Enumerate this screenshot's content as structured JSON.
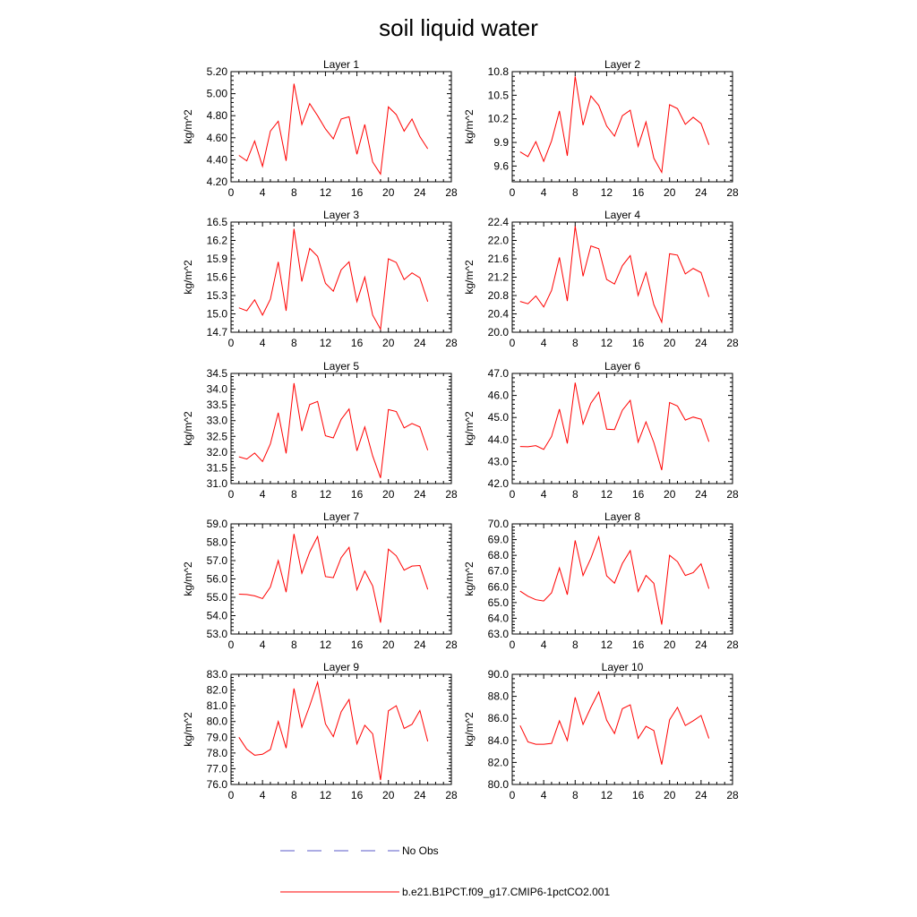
{
  "title": "soil liquid water",
  "legend": {
    "obs_label": "No Obs",
    "obs_color": "#5a5ac8",
    "model_label": "b.e21.B1PCT.f09_g17.CMIP6-1pctCO2.001",
    "model_color": "#ff0000"
  },
  "chart_data": [
    {
      "type": "line",
      "title": "Layer 1",
      "ylabel": "kg/m^2",
      "xlim": [
        0,
        28
      ],
      "ylim": [
        4.2,
        5.2
      ],
      "xticks": [
        0,
        4,
        8,
        12,
        16,
        20,
        24,
        28
      ],
      "xtick_labels": [
        "0",
        "4",
        "8",
        "12",
        "16",
        "20",
        "24",
        "28"
      ],
      "yticks": [
        4.2,
        4.4,
        4.6,
        4.8,
        5.0,
        5.2
      ],
      "ytick_labels": [
        "4.20",
        "4.40",
        "4.60",
        "4.80",
        "5.00",
        "5.20"
      ],
      "x": [
        1,
        2,
        3,
        4,
        5,
        6,
        7,
        8,
        9,
        10,
        11,
        12,
        13,
        14,
        15,
        16,
        17,
        18,
        19,
        20,
        21,
        22,
        23,
        24,
        25
      ],
      "series": [
        {
          "name": "b.e21.B1PCT.f09_g17.CMIP6-1pctCO2.001",
          "values": [
            4.44,
            4.39,
            4.57,
            4.34,
            4.66,
            4.75,
            4.39,
            5.09,
            4.72,
            4.91,
            4.8,
            4.68,
            4.59,
            4.77,
            4.79,
            4.45,
            4.72,
            4.38,
            4.27,
            4.88,
            4.81,
            4.66,
            4.77,
            4.61,
            4.5
          ]
        }
      ]
    },
    {
      "type": "line",
      "title": "Layer 2",
      "ylabel": "kg/m^2",
      "xlim": [
        0,
        28
      ],
      "ylim": [
        9.4,
        10.8
      ],
      "xticks": [
        0,
        4,
        8,
        12,
        16,
        20,
        24,
        28
      ],
      "xtick_labels": [
        "0",
        "4",
        "8",
        "12",
        "16",
        "20",
        "24",
        "28"
      ],
      "yticks": [
        9.6,
        9.9,
        10.2,
        10.5,
        10.8
      ],
      "ytick_labels": [
        "9.6",
        "9.9",
        "10.2",
        "10.5",
        "10.8"
      ],
      "x": [
        1,
        2,
        3,
        4,
        5,
        6,
        7,
        8,
        9,
        10,
        11,
        12,
        13,
        14,
        15,
        16,
        17,
        18,
        19,
        20,
        21,
        22,
        23,
        24,
        25
      ],
      "series": [
        {
          "name": "b.e21.B1PCT.f09_g17.CMIP6-1pctCO2.001",
          "values": [
            9.78,
            9.72,
            9.91,
            9.66,
            9.92,
            10.3,
            9.73,
            10.74,
            10.12,
            10.49,
            10.37,
            10.11,
            9.98,
            10.24,
            10.31,
            9.85,
            10.16,
            9.7,
            9.52,
            10.38,
            10.33,
            10.13,
            10.22,
            10.14,
            9.87
          ]
        }
      ]
    },
    {
      "type": "line",
      "title": "Layer 3",
      "ylabel": "kg/m^2",
      "xlim": [
        0,
        28
      ],
      "ylim": [
        14.7,
        16.5
      ],
      "xticks": [
        0,
        4,
        8,
        12,
        16,
        20,
        24,
        28
      ],
      "xtick_labels": [
        "0",
        "4",
        "8",
        "12",
        "16",
        "20",
        "24",
        "28"
      ],
      "yticks": [
        14.7,
        15.0,
        15.3,
        15.6,
        15.9,
        16.2,
        16.5
      ],
      "ytick_labels": [
        "14.7",
        "15.0",
        "15.3",
        "15.6",
        "15.9",
        "16.2",
        "16.5"
      ],
      "x": [
        1,
        2,
        3,
        4,
        5,
        6,
        7,
        8,
        9,
        10,
        11,
        12,
        13,
        14,
        15,
        16,
        17,
        18,
        19,
        20,
        21,
        22,
        23,
        24,
        25
      ],
      "series": [
        {
          "name": "b.e21.B1PCT.f09_g17.CMIP6-1pctCO2.001",
          "values": [
            15.1,
            15.05,
            15.23,
            14.98,
            15.24,
            15.85,
            15.05,
            16.39,
            15.53,
            16.07,
            15.94,
            15.5,
            15.37,
            15.72,
            15.85,
            15.2,
            15.6,
            14.98,
            14.75,
            15.9,
            15.84,
            15.56,
            15.67,
            15.59,
            15.2
          ]
        }
      ]
    },
    {
      "type": "line",
      "title": "Layer 4",
      "ylabel": "kg/m^2",
      "xlim": [
        0,
        28
      ],
      "ylim": [
        20.0,
        22.4
      ],
      "xticks": [
        0,
        4,
        8,
        12,
        16,
        20,
        24,
        28
      ],
      "xtick_labels": [
        "0",
        "4",
        "8",
        "12",
        "16",
        "20",
        "24",
        "28"
      ],
      "yticks": [
        20.0,
        20.4,
        20.8,
        21.2,
        21.6,
        22.0,
        22.4
      ],
      "ytick_labels": [
        "20.0",
        "20.4",
        "20.8",
        "21.2",
        "21.6",
        "22.0",
        "22.4"
      ],
      "x": [
        1,
        2,
        3,
        4,
        5,
        6,
        7,
        8,
        9,
        10,
        11,
        12,
        13,
        14,
        15,
        16,
        17,
        18,
        19,
        20,
        21,
        22,
        23,
        24,
        25
      ],
      "series": [
        {
          "name": "b.e21.B1PCT.f09_g17.CMIP6-1pctCO2.001",
          "values": [
            20.67,
            20.62,
            20.79,
            20.55,
            20.91,
            21.63,
            20.68,
            22.31,
            21.22,
            21.88,
            21.82,
            21.15,
            21.05,
            21.45,
            21.67,
            20.8,
            21.3,
            20.6,
            20.22,
            21.71,
            21.68,
            21.27,
            21.39,
            21.3,
            20.77
          ]
        }
      ]
    },
    {
      "type": "line",
      "title": "Layer 5",
      "ylabel": "kg/m^2",
      "xlim": [
        0,
        28
      ],
      "ylim": [
        31.0,
        34.5
      ],
      "xticks": [
        0,
        4,
        8,
        12,
        16,
        20,
        24,
        28
      ],
      "xtick_labels": [
        "0",
        "4",
        "8",
        "12",
        "16",
        "20",
        "24",
        "28"
      ],
      "yticks": [
        31.0,
        31.5,
        32.0,
        32.5,
        33.0,
        33.5,
        34.0,
        34.5
      ],
      "ytick_labels": [
        "31.0",
        "31.5",
        "32.0",
        "32.5",
        "33.0",
        "33.5",
        "34.0",
        "34.5"
      ],
      "x": [
        1,
        2,
        3,
        4,
        5,
        6,
        7,
        8,
        9,
        10,
        11,
        12,
        13,
        14,
        15,
        16,
        17,
        18,
        19,
        20,
        21,
        22,
        23,
        24,
        25
      ],
      "series": [
        {
          "name": "b.e21.B1PCT.f09_g17.CMIP6-1pctCO2.001",
          "values": [
            31.85,
            31.78,
            31.97,
            31.7,
            32.26,
            33.25,
            31.96,
            34.19,
            32.67,
            33.51,
            33.61,
            32.52,
            32.45,
            33.04,
            33.37,
            32.04,
            32.8,
            31.88,
            31.18,
            33.35,
            33.29,
            32.77,
            32.91,
            32.8,
            32.06
          ]
        }
      ]
    },
    {
      "type": "line",
      "title": "Layer 6",
      "ylabel": "kg/m^2",
      "xlim": [
        0,
        28
      ],
      "ylim": [
        42.0,
        47.0
      ],
      "xticks": [
        0,
        4,
        8,
        12,
        16,
        20,
        24,
        28
      ],
      "xtick_labels": [
        "0",
        "4",
        "8",
        "12",
        "16",
        "20",
        "24",
        "28"
      ],
      "yticks": [
        42.0,
        43.0,
        44.0,
        45.0,
        46.0,
        47.0
      ],
      "ytick_labels": [
        "42.0",
        "43.0",
        "44.0",
        "45.0",
        "46.0",
        "47.0"
      ],
      "x": [
        1,
        2,
        3,
        4,
        5,
        6,
        7,
        8,
        9,
        10,
        11,
        12,
        13,
        14,
        15,
        16,
        17,
        18,
        19,
        20,
        21,
        22,
        23,
        24,
        25
      ],
      "series": [
        {
          "name": "b.e21.B1PCT.f09_g17.CMIP6-1pctCO2.001",
          "values": [
            43.68,
            43.67,
            43.72,
            43.55,
            44.14,
            45.38,
            43.82,
            46.58,
            44.7,
            45.65,
            46.15,
            44.47,
            44.45,
            45.33,
            45.78,
            43.88,
            44.8,
            43.86,
            42.61,
            45.68,
            45.52,
            44.88,
            45.02,
            44.92,
            43.9
          ]
        }
      ]
    },
    {
      "type": "line",
      "title": "Layer 7",
      "ylabel": "kg/m^2",
      "xlim": [
        0,
        28
      ],
      "ylim": [
        53.0,
        59.0
      ],
      "xticks": [
        0,
        4,
        8,
        12,
        16,
        20,
        24,
        28
      ],
      "xtick_labels": [
        "0",
        "4",
        "8",
        "12",
        "16",
        "20",
        "24",
        "28"
      ],
      "yticks": [
        53.0,
        54.0,
        55.0,
        56.0,
        57.0,
        58.0,
        59.0
      ],
      "ytick_labels": [
        "53.0",
        "54.0",
        "55.0",
        "56.0",
        "57.0",
        "58.0",
        "59.0"
      ],
      "x": [
        1,
        2,
        3,
        4,
        5,
        6,
        7,
        8,
        9,
        10,
        11,
        12,
        13,
        14,
        15,
        16,
        17,
        18,
        19,
        20,
        21,
        22,
        23,
        24,
        25
      ],
      "series": [
        {
          "name": "b.e21.B1PCT.f09_g17.CMIP6-1pctCO2.001",
          "values": [
            55.17,
            55.15,
            55.08,
            54.93,
            55.56,
            57.0,
            55.28,
            58.45,
            56.31,
            57.47,
            58.31,
            56.13,
            56.07,
            57.16,
            57.72,
            55.4,
            56.43,
            55.62,
            53.62,
            57.62,
            57.26,
            56.48,
            56.7,
            56.73,
            55.43
          ]
        }
      ]
    },
    {
      "type": "line",
      "title": "Layer 8",
      "ylabel": "kg/m^2",
      "xlim": [
        0,
        28
      ],
      "ylim": [
        63.0,
        70.0
      ],
      "xticks": [
        0,
        4,
        8,
        12,
        16,
        20,
        24,
        28
      ],
      "xtick_labels": [
        "0",
        "4",
        "8",
        "12",
        "16",
        "20",
        "24",
        "28"
      ],
      "yticks": [
        63.0,
        64.0,
        65.0,
        66.0,
        67.0,
        68.0,
        69.0,
        70.0
      ],
      "ytick_labels": [
        "63.0",
        "64.0",
        "65.0",
        "66.0",
        "67.0",
        "68.0",
        "69.0",
        "70.0"
      ],
      "x": [
        1,
        2,
        3,
        4,
        5,
        6,
        7,
        8,
        9,
        10,
        11,
        12,
        13,
        14,
        15,
        16,
        17,
        18,
        19,
        20,
        21,
        22,
        23,
        24,
        25
      ],
      "series": [
        {
          "name": "b.e21.B1PCT.f09_g17.CMIP6-1pctCO2.001",
          "values": [
            65.73,
            65.4,
            65.18,
            65.1,
            65.62,
            67.2,
            65.5,
            68.95,
            66.72,
            67.82,
            69.18,
            66.7,
            66.23,
            67.48,
            68.3,
            65.7,
            66.72,
            66.22,
            63.6,
            68.0,
            67.6,
            66.72,
            66.9,
            67.46,
            65.88
          ]
        }
      ]
    },
    {
      "type": "line",
      "title": "Layer 9",
      "ylabel": "kg/m^2",
      "xlim": [
        0,
        28
      ],
      "ylim": [
        76.0,
        83.0
      ],
      "xticks": [
        0,
        4,
        8,
        12,
        16,
        20,
        24,
        28
      ],
      "xtick_labels": [
        "0",
        "4",
        "8",
        "12",
        "16",
        "20",
        "24",
        "28"
      ],
      "yticks": [
        76.0,
        77.0,
        78.0,
        79.0,
        80.0,
        81.0,
        82.0,
        83.0
      ],
      "ytick_labels": [
        "76.0",
        "77.0",
        "78.0",
        "79.0",
        "80.0",
        "81.0",
        "82.0",
        "83.0"
      ],
      "x": [
        1,
        2,
        3,
        4,
        5,
        6,
        7,
        8,
        9,
        10,
        11,
        12,
        13,
        14,
        15,
        16,
        17,
        18,
        19,
        20,
        21,
        22,
        23,
        24,
        25
      ],
      "series": [
        {
          "name": "b.e21.B1PCT.f09_g17.CMIP6-1pctCO2.001",
          "values": [
            79.0,
            78.24,
            77.86,
            77.92,
            78.22,
            80.0,
            78.31,
            82.1,
            79.64,
            81.0,
            82.5,
            79.85,
            79.04,
            80.62,
            81.4,
            78.58,
            79.76,
            79.22,
            76.28,
            80.68,
            81.0,
            79.56,
            79.82,
            80.7,
            78.74
          ]
        }
      ]
    },
    {
      "type": "line",
      "title": "Layer 10",
      "ylabel": "kg/m^2",
      "xlim": [
        0,
        28
      ],
      "ylim": [
        80.0,
        90.0
      ],
      "xticks": [
        0,
        4,
        8,
        12,
        16,
        20,
        24,
        28
      ],
      "xtick_labels": [
        "0",
        "4",
        "8",
        "12",
        "16",
        "20",
        "24",
        "28"
      ],
      "yticks": [
        80.0,
        82.0,
        84.0,
        86.0,
        88.0,
        90.0
      ],
      "ytick_labels": [
        "80.0",
        "82.0",
        "84.0",
        "86.0",
        "88.0",
        "90.0"
      ],
      "x": [
        1,
        2,
        3,
        4,
        5,
        6,
        7,
        8,
        9,
        10,
        11,
        12,
        13,
        14,
        15,
        16,
        17,
        18,
        19,
        20,
        21,
        22,
        23,
        24,
        25
      ],
      "series": [
        {
          "name": "b.e21.B1PCT.f09_g17.CMIP6-1pctCO2.001",
          "values": [
            85.35,
            83.86,
            83.65,
            83.65,
            83.73,
            85.78,
            83.99,
            87.91,
            85.45,
            87.0,
            88.4,
            85.84,
            84.62,
            86.88,
            87.23,
            84.18,
            85.28,
            84.89,
            81.81,
            85.87,
            87.0,
            85.35,
            85.78,
            86.26,
            84.18
          ]
        }
      ]
    }
  ]
}
